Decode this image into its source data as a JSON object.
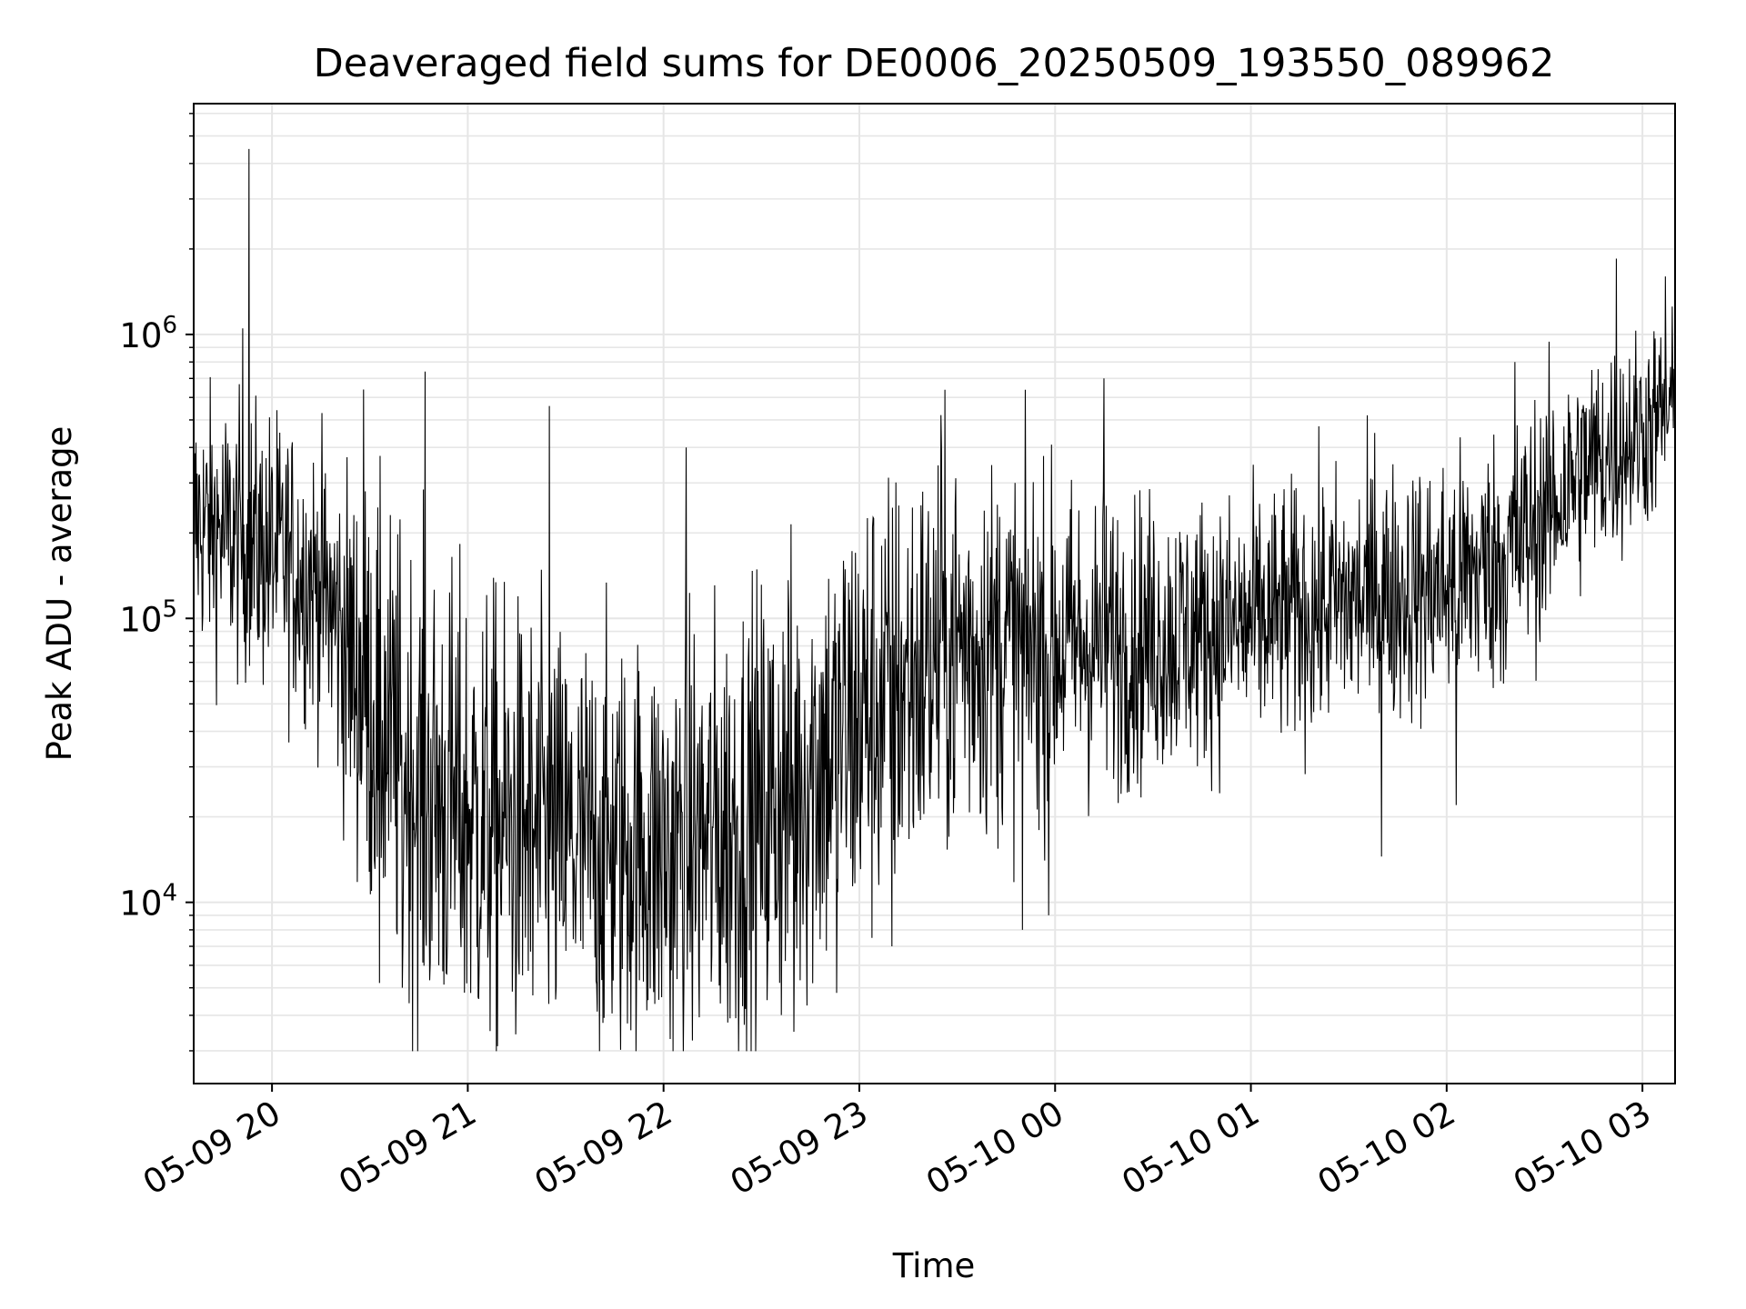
{
  "chart_data": {
    "type": "line",
    "title": "Deaveraged field sums for DE0006_20250509_193550_089962",
    "xlabel": "Time",
    "ylabel": "Peak ADU - average",
    "yscale": "log",
    "xlim": [
      "2025-05-09 19:36",
      "2025-05-10 03:10"
    ],
    "ylim": [
      2300,
      6500000
    ],
    "grid": true,
    "line_color": "#000000",
    "grid_color": "#e6e6e6",
    "x_ticks": [
      {
        "t": "2025-05-09 20:00",
        "label": "05-09 20"
      },
      {
        "t": "2025-05-09 21:00",
        "label": "05-09 21"
      },
      {
        "t": "2025-05-09 22:00",
        "label": "05-09 22"
      },
      {
        "t": "2025-05-09 23:00",
        "label": "05-09 23"
      },
      {
        "t": "2025-05-10 00:00",
        "label": "05-10 00"
      },
      {
        "t": "2025-05-10 01:00",
        "label": "05-10 01"
      },
      {
        "t": "2025-05-10 02:00",
        "label": "05-10 02"
      },
      {
        "t": "2025-05-10 03:00",
        "label": "05-10 03"
      }
    ],
    "y_ticks": [
      {
        "value": 10000,
        "base": "10",
        "exp": "4"
      },
      {
        "value": 100000,
        "base": "10",
        "exp": "5"
      },
      {
        "value": 1000000,
        "base": "10",
        "exp": "6"
      }
    ],
    "envelope": [
      {
        "t": "2025-05-09 19:36",
        "center": 220000,
        "spread": 0.55
      },
      {
        "t": "2025-05-09 20:00",
        "center": 170000,
        "spread": 0.6
      },
      {
        "t": "2025-05-09 20:15",
        "center": 130000,
        "spread": 0.6
      },
      {
        "t": "2025-05-09 20:30",
        "center": 50000,
        "spread": 0.9
      },
      {
        "t": "2025-05-09 20:45",
        "center": 25000,
        "spread": 1.0
      },
      {
        "t": "2025-05-09 21:00",
        "center": 20000,
        "spread": 1.0
      },
      {
        "t": "2025-05-09 21:30",
        "center": 16000,
        "spread": 0.9
      },
      {
        "t": "2025-05-09 22:00",
        "center": 15000,
        "spread": 0.9
      },
      {
        "t": "2025-05-09 22:30",
        "center": 20000,
        "spread": 1.0
      },
      {
        "t": "2025-05-09 23:00",
        "center": 45000,
        "spread": 1.0
      },
      {
        "t": "2025-05-09 23:30",
        "center": 80000,
        "spread": 0.85
      },
      {
        "t": "2025-05-10 00:00",
        "center": 80000,
        "spread": 0.7
      },
      {
        "t": "2025-05-10 00:30",
        "center": 85000,
        "spread": 0.6
      },
      {
        "t": "2025-05-10 01:00",
        "center": 95000,
        "spread": 0.55
      },
      {
        "t": "2025-05-10 01:30",
        "center": 115000,
        "spread": 0.55
      },
      {
        "t": "2025-05-10 02:00",
        "center": 130000,
        "spread": 0.55
      },
      {
        "t": "2025-05-10 02:20",
        "center": 170000,
        "spread": 0.55
      },
      {
        "t": "2025-05-10 02:40",
        "center": 320000,
        "spread": 0.5
      },
      {
        "t": "2025-05-10 03:10",
        "center": 550000,
        "spread": 0.4
      }
    ],
    "notable_points": [
      {
        "t": "2025-05-09 19:53",
        "value": 4500000
      },
      {
        "t": "2025-05-09 19:51",
        "value": 1050000
      },
      {
        "t": "2025-05-09 20:47",
        "value": 740000
      },
      {
        "t": "2025-05-09 20:28",
        "value": 640000
      },
      {
        "t": "2025-05-09 21:25",
        "value": 560000
      },
      {
        "t": "2025-05-09 22:07",
        "value": 400000
      },
      {
        "t": "2025-05-09 23:25",
        "value": 520000
      },
      {
        "t": "2025-05-10 00:15",
        "value": 700000
      },
      {
        "t": "2025-05-10 01:38",
        "value": 450000
      },
      {
        "t": "2025-05-10 02:21",
        "value": 800000
      },
      {
        "t": "2025-05-10 02:52",
        "value": 1850000
      },
      {
        "t": "2025-05-10 03:07",
        "value": 1600000
      },
      {
        "t": "2025-05-10 03:10",
        "value": 800000
      },
      {
        "t": "2025-05-09 20:33",
        "value": 5200
      },
      {
        "t": "2025-05-09 20:40",
        "value": 5000
      },
      {
        "t": "2025-05-09 21:20",
        "value": 4700
      },
      {
        "t": "2025-05-09 22:02",
        "value": 3300
      },
      {
        "t": "2025-05-09 22:40",
        "value": 3500
      },
      {
        "t": "2025-05-09 22:53",
        "value": 4800
      },
      {
        "t": "2025-05-09 23:10",
        "value": 7000
      },
      {
        "t": "2025-05-09 23:50",
        "value": 8000
      },
      {
        "t": "2025-05-09 23:58",
        "value": 9000
      },
      {
        "t": "2025-05-10 01:40",
        "value": 14500
      },
      {
        "t": "2025-05-10 02:03",
        "value": 22000
      }
    ]
  }
}
